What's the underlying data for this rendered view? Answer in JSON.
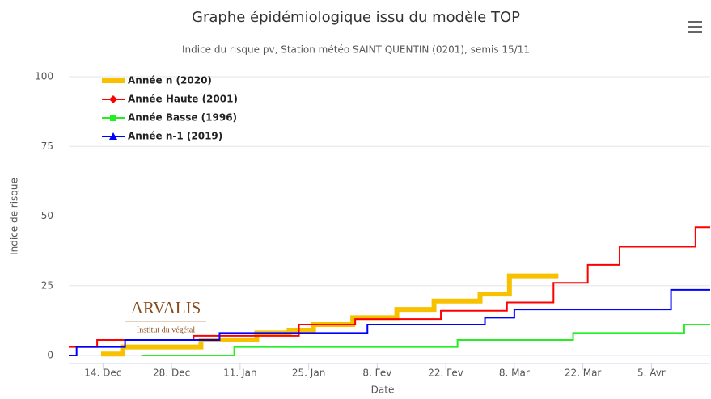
{
  "chart_data": {
    "type": "line",
    "step": true,
    "title": "Graphe épidémiologique issu du modèle TOP",
    "subtitle": "Indice du risque pv, Station météo SAINT QUENTIN (0201), semis 15/11",
    "xlabel": "Date",
    "ylabel": "Indice de risque",
    "xlim": [
      7,
      138
    ],
    "ylim": [
      0,
      100
    ],
    "xticks": [
      {
        "value": 14,
        "label": "14. Dec"
      },
      {
        "value": 28,
        "label": "28. Dec"
      },
      {
        "value": 42,
        "label": "11. Jan"
      },
      {
        "value": 56,
        "label": "25. Jan"
      },
      {
        "value": 70,
        "label": "8. Fev"
      },
      {
        "value": 84,
        "label": "22. Fev"
      },
      {
        "value": 98,
        "label": "8. Mar"
      },
      {
        "value": 112,
        "label": "22. Mar"
      },
      {
        "value": 126,
        "label": "5. Avr"
      }
    ],
    "yticks": [
      0,
      25,
      50,
      75,
      100
    ],
    "grid": true,
    "legend": "upper left",
    "logo": {
      "name": "ARVALIS",
      "tagline": "Institut du végétal"
    },
    "series": [
      {
        "name": "Année n (2020)",
        "color": "#f7c100",
        "marker": "bar",
        "x": [
          13.6,
          18,
          34,
          45.4,
          52,
          57,
          65,
          74,
          81.6,
          91,
          97,
          107
        ],
        "values": [
          0.5,
          3,
          5.5,
          8,
          9,
          11,
          13.5,
          16.5,
          19.5,
          22,
          28.5,
          28.5
        ]
      },
      {
        "name": "Année Haute (2001)",
        "color": "#ff0000",
        "marker": "diamond",
        "x": [
          7,
          12.8,
          32.5,
          54,
          65.5,
          83,
          96.5,
          106,
          113,
          119.5,
          135,
          138
        ],
        "values": [
          3,
          5.5,
          7,
          11,
          13,
          16,
          19,
          26,
          32.5,
          39,
          46,
          46
        ]
      },
      {
        "name": "Année Basse (1996)",
        "color": "#22ee22",
        "marker": "square",
        "x": [
          21.8,
          40.8,
          86.4,
          110,
          132.7,
          138
        ],
        "values": [
          0,
          3,
          5.5,
          8,
          11,
          11
        ]
      },
      {
        "name": "Année n-1 (2019)",
        "color": "#0000ff",
        "marker": "triangle",
        "x": [
          7,
          8.6,
          18.5,
          37.8,
          68,
          92,
          98,
          130,
          138
        ],
        "values": [
          0,
          3,
          5.5,
          8,
          11,
          13.5,
          16.5,
          23.5,
          23.5
        ]
      }
    ]
  }
}
